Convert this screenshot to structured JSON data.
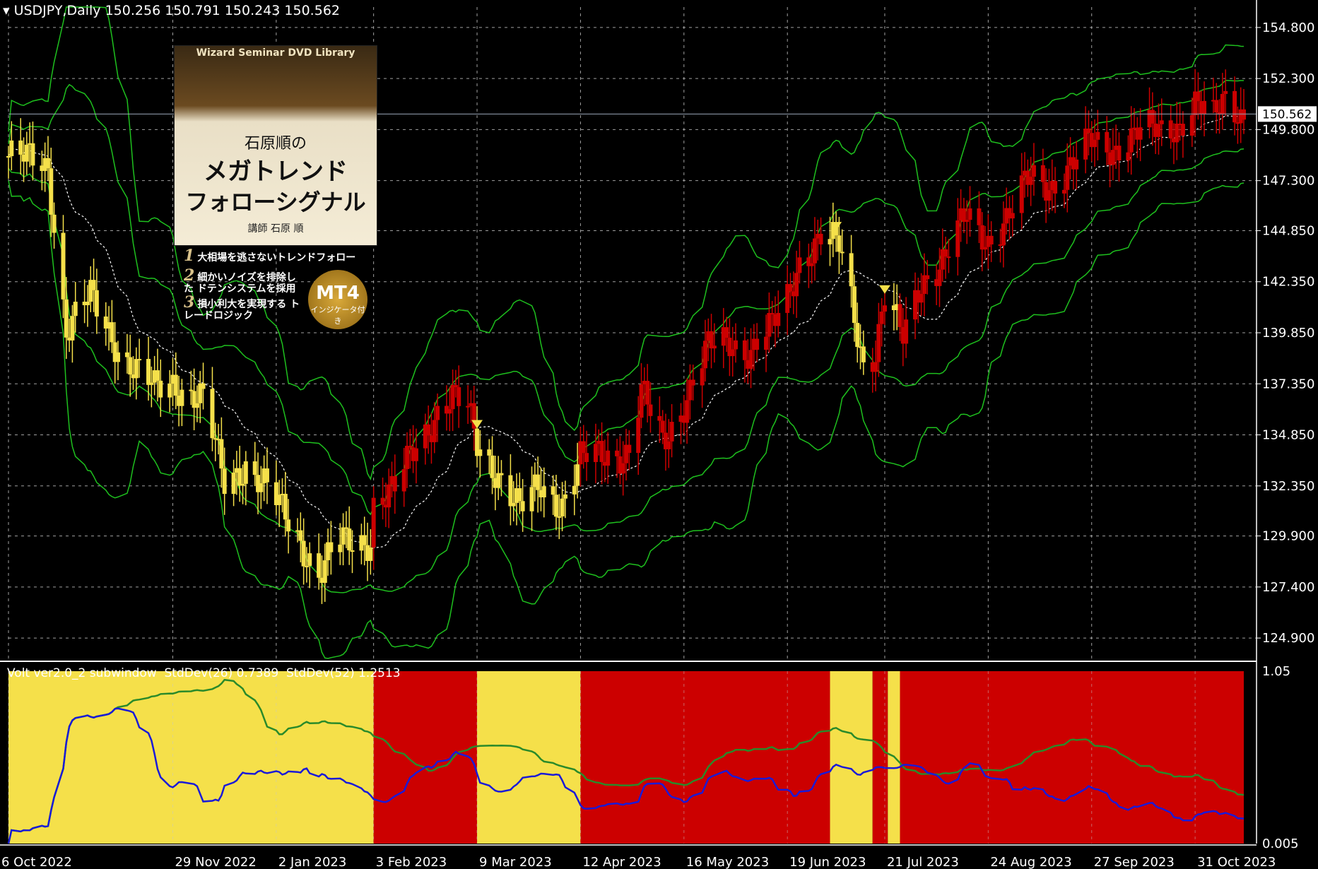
{
  "header": {
    "symbol_label": "USDJPY,Daily",
    "ohlc": "150.256 150.791 150.243 150.562"
  },
  "indicator_header": "Volt ver2.0_2 subwindow  StdDev(26) 0.7389  StdDev(52) 1.2513",
  "current_price_label": "150.562",
  "advert": {
    "series": "Wizard Seminar DVD Library",
    "author": "石原順の",
    "title_line1": "メガトレンド",
    "title_line2": "フォローシグナル",
    "byline": "講師 石原 順",
    "features": [
      "大相場を逃さないトレンドフォロー",
      "細かいノイズを排除した ドテンシステムを採用",
      "損小利大を実現する トレードロジック"
    ],
    "feature_numbers": [
      "1",
      "2",
      "3"
    ],
    "badge_title": "MT4",
    "badge_sub": "インジケータ付き"
  },
  "colors": {
    "background": "#000000",
    "grid": "#c8c8c8",
    "bull_signal": "#cc0000",
    "bear_signal": "#f5e04a",
    "bollinger": "#1ec01e",
    "mid_line": "#ffffff",
    "stddev26": "#1a1ad8",
    "stddev52": "#2a8a2a"
  },
  "chart_data": [
    {
      "type": "candlestick",
      "symbol": "USDJPY",
      "timeframe": "Daily",
      "ylim": [
        123.9,
        155.8
      ],
      "y_ticks": [
        "154.800",
        "152.300",
        "149.800",
        "147.300",
        "144.850",
        "142.350",
        "139.850",
        "137.350",
        "134.850",
        "132.350",
        "129.900",
        "127.400",
        "124.900"
      ],
      "x_ticks": [
        "6 Oct 2022",
        "29 Nov 2022",
        "2 Jan 2023",
        "3 Feb 2023",
        "9 Mar 2023",
        "12 Apr 2023",
        "16 May 2023",
        "19 Jun 2023",
        "21 Jul 2023",
        "24 Aug 2023",
        "27 Sep 2023",
        "31 Oct 2023"
      ],
      "current_price": 150.562,
      "close_path": [
        [
          "6 Oct 2022",
          148.5
        ],
        [
          "19 Oct 2022",
          148.0
        ],
        [
          "25 Oct 2022",
          140.0
        ],
        [
          "2 Nov 2022",
          141.5
        ],
        [
          "14 Nov 2022",
          138.5
        ],
        [
          "23 Nov 2022",
          137.0
        ],
        [
          "29 Nov 2022",
          137.5
        ],
        [
          "9 Dec 2022",
          136.5
        ],
        [
          "16 Dec 2022",
          132.5
        ],
        [
          "23 Dec 2022",
          133.5
        ],
        [
          "2 Jan 2023",
          131.5
        ],
        [
          "9 Jan 2023",
          130.0
        ],
        [
          "16 Jan 2023",
          128.0
        ],
        [
          "23 Jan 2023",
          129.5
        ],
        [
          "2 Feb 2023",
          129.8
        ],
        [
          "3 Feb 2023",
          131.5
        ],
        [
          "10 Feb 2023",
          132.0
        ],
        [
          "17 Feb 2023",
          134.5
        ],
        [
          "24 Feb 2023",
          136.0
        ],
        [
          "1 Mar 2023",
          136.5
        ],
        [
          "6 Mar 2023",
          136.0
        ],
        [
          "9 Mar 2023",
          134.5
        ],
        [
          "14 Mar 2023",
          133.5
        ],
        [
          "23 Mar 2023",
          131.0
        ],
        [
          "30 Mar 2023",
          132.5
        ],
        [
          "6 Apr 2023",
          131.5
        ],
        [
          "12 Apr 2023",
          133.5
        ],
        [
          "20 Apr 2023",
          134.0
        ],
        [
          "28 Apr 2023",
          134.0
        ],
        [
          "2 May 2023",
          136.8
        ],
        [
          "9 May 2023",
          134.5
        ],
        [
          "16 May 2023",
          136.5
        ],
        [
          "24 May 2023",
          139.0
        ],
        [
          "31 May 2023",
          139.5
        ],
        [
          "7 Jun 2023",
          139.0
        ],
        [
          "14 Jun 2023",
          140.0
        ],
        [
          "19 Jun 2023",
          141.5
        ],
        [
          "23 Jun 2023",
          143.5
        ],
        [
          "30 Jun 2023",
          144.5
        ],
        [
          "6 Jul 2023",
          144.0
        ],
        [
          "10 Jul 2023",
          141.5
        ],
        [
          "14 Jul 2023",
          138.5
        ],
        [
          "18 Jul 2023",
          139.0
        ],
        [
          "21 Jul 2023",
          141.5
        ],
        [
          "27 Jul 2023",
          139.5
        ],
        [
          "2 Aug 2023",
          142.5
        ],
        [
          "10 Aug 2023",
          143.5
        ],
        [
          "17 Aug 2023",
          145.5
        ],
        [
          "24 Aug 2023",
          144.5
        ],
        [
          "31 Aug 2023",
          145.5
        ],
        [
          "7 Sep 2023",
          147.5
        ],
        [
          "14 Sep 2023",
          147.2
        ],
        [
          "21 Sep 2023",
          148.0
        ],
        [
          "27 Sep 2023",
          149.2
        ],
        [
          "5 Oct 2023",
          149.0
        ],
        [
          "12 Oct 2023",
          149.5
        ],
        [
          "19 Oct 2023",
          149.8
        ],
        [
          "26 Oct 2023",
          150.2
        ],
        [
          "31 Oct 2023",
          151.0
        ],
        [
          "6 Nov 2023",
          150.2
        ],
        [
          "10 Nov 2023",
          151.5
        ],
        [
          "16 Nov 2023",
          150.562
        ]
      ],
      "signal_arrows": [
        {
          "date": "9 Mar 2023",
          "direction": "down",
          "price": 135.3
        },
        {
          "date": "5 Jul 2023",
          "direction": "down",
          "price": 145.0
        },
        {
          "date": "21 Jul 2023",
          "direction": "down",
          "price": 141.9
        }
      ]
    },
    {
      "type": "line",
      "title": "Volt ver2.0_2 subwindow",
      "ylim": [
        0.005,
        1.05
      ],
      "y_ticks": [
        "1.05",
        "0.005"
      ],
      "series": [
        {
          "name": "StdDev(26)",
          "value": 0.7389
        },
        {
          "name": "StdDev(52)",
          "value": 1.2513
        }
      ],
      "regimes": [
        {
          "from": "6 Oct 2022",
          "to": "3 Feb 2023",
          "state": "yellow"
        },
        {
          "from": "3 Feb 2023",
          "to": "9 Mar 2023",
          "state": "red"
        },
        {
          "from": "9 Mar 2023",
          "to": "12 Apr 2023",
          "state": "yellow"
        },
        {
          "from": "12 Apr 2023",
          "to": "3 Jul 2023",
          "state": "red"
        },
        {
          "from": "3 Jul 2023",
          "to": "17 Jul 2023",
          "state": "yellow"
        },
        {
          "from": "17 Jul 2023",
          "to": "22 Jul 2023",
          "state": "red"
        },
        {
          "from": "22 Jul 2023",
          "to": "26 Jul 2023",
          "state": "yellow"
        },
        {
          "from": "26 Jul 2023",
          "to": "16 Nov 2023",
          "state": "red"
        }
      ]
    }
  ]
}
